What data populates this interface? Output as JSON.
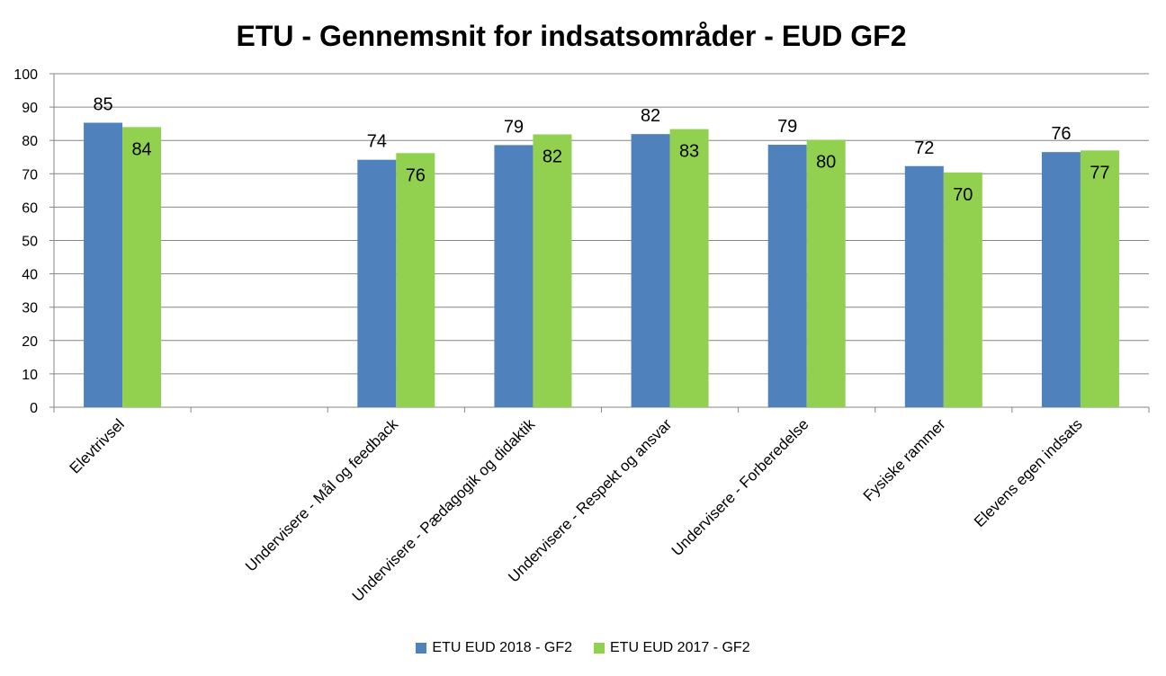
{
  "chart_data": {
    "type": "bar",
    "title": "ETU - Gennemsnit for indsatsområder - EUD GF2",
    "categories": [
      "Elevtrivsel",
      "",
      "Undervisere - Mål og feedback",
      "Undervisere - Pædagogik og didaktik",
      "Undervisere - Respekt og ansvar",
      "Undervisere - Forberedelse",
      "Fysiske rammer",
      "Elevens egen indsats"
    ],
    "series": [
      {
        "name": "ETU EUD 2018 - GF2",
        "color": "#4F81BD",
        "values": [
          85.3,
          null,
          74.2,
          78.6,
          81.9,
          78.7,
          72.3,
          76.5
        ],
        "labels": [
          "85",
          "",
          "74",
          "79",
          "82",
          "79",
          "72",
          "76"
        ]
      },
      {
        "name": "ETU EUD 2017 - GF2",
        "color": "#92D050",
        "values": [
          84.0,
          null,
          76.2,
          81.8,
          83.4,
          80.2,
          70.4,
          77.0
        ],
        "labels": [
          "84",
          "",
          "76",
          "82",
          "83",
          "80",
          "70",
          "77"
        ]
      }
    ],
    "yticks": [
      "0",
      "10",
      "20",
      "30",
      "40",
      "50",
      "60",
      "70",
      "80",
      "90",
      "100"
    ],
    "ylim": [
      0,
      100
    ],
    "grid": true,
    "legend": "bottom"
  }
}
